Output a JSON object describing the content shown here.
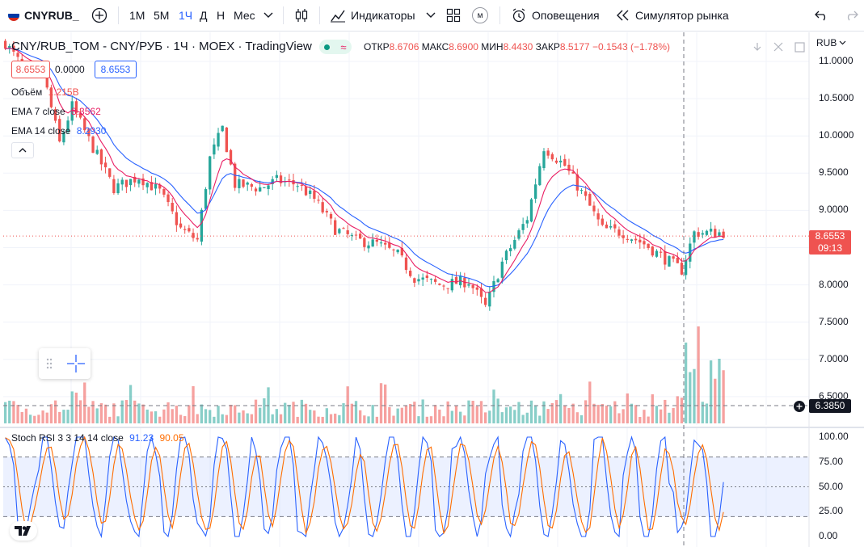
{
  "toolbar": {
    "symbol": "CNYRUB_",
    "intervals": [
      "1M",
      "5M",
      "1Ч",
      "Д",
      "Н",
      "Мес"
    ],
    "active_interval": "1Ч",
    "indicators_label": "Индикаторы",
    "alert_label": "Оповещения",
    "replay_label": "Симулятор рынка",
    "layout_letter": "м"
  },
  "header": {
    "title": "CNY/RUB_TOM - CNY/РУБ · 1Ч · MOEX · TradingView",
    "o_label": "ОТКР",
    "o_value": "8.6706",
    "h_label": "МАКС",
    "h_value": "8.6900",
    "l_label": "МИН",
    "l_value": "8.4430",
    "c_label": "ЗАКР",
    "c_value": "8.5177",
    "change": "−0.1543 (−1.78%)",
    "sell_price": "8.6553",
    "spread": "0.0000",
    "buy_price": "8.6553",
    "volume_label": "Объём",
    "volume_value": "1.215B",
    "ema7_label": "EMA 7 close",
    "ema7_value": "8.3562",
    "ema14_label": "EMA 14 close",
    "ema14_value": "8.2930",
    "currency": "RUB"
  },
  "colors": {
    "up": "#26a69a",
    "down": "#ef5350",
    "ema7": "#e91e63",
    "ema14": "#2962ff",
    "k": "#2962ff",
    "d": "#ff6d00",
    "accent": "#2962ff"
  },
  "chart_data": [
    {
      "type": "candlestick",
      "name": "CNY/RUB_TOM",
      "y_ticks": [
        "11.0000",
        "10.5000",
        "10.0000",
        "9.5000",
        "9.0000",
        "8.5000",
        "8.0000",
        "7.5000",
        "7.0000",
        "6.5000"
      ],
      "ylim": [
        6.25,
        11.25
      ],
      "last_price": "8.6553",
      "last_time": "09:13",
      "key_points": [
        [
          0,
          11.25
        ],
        [
          5,
          10.85
        ],
        [
          9,
          10.85
        ],
        [
          13,
          9.9
        ],
        [
          16,
          10.4
        ],
        [
          20,
          9.95
        ],
        [
          26,
          9.3
        ],
        [
          32,
          9.45
        ],
        [
          37,
          9.25
        ],
        [
          42,
          8.75
        ],
        [
          46,
          8.6
        ],
        [
          49,
          9.7
        ],
        [
          52,
          10.1
        ],
        [
          55,
          9.35
        ],
        [
          61,
          9.3
        ],
        [
          65,
          9.4
        ],
        [
          70,
          9.35
        ],
        [
          74,
          9.15
        ],
        [
          79,
          8.75
        ],
        [
          84,
          8.6
        ],
        [
          89,
          8.55
        ],
        [
          94,
          8.4
        ],
        [
          98,
          8.1
        ],
        [
          104,
          8.0
        ],
        [
          111,
          8.05
        ],
        [
          115,
          7.7
        ],
        [
          119,
          8.3
        ],
        [
          122,
          8.6
        ],
        [
          125,
          8.9
        ],
        [
          129,
          9.85
        ],
        [
          134,
          9.6
        ],
        [
          139,
          9.15
        ],
        [
          143,
          8.75
        ],
        [
          148,
          8.7
        ],
        [
          153,
          8.55
        ],
        [
          158,
          8.35
        ],
        [
          162,
          8.2
        ],
        [
          165,
          8.7
        ],
        [
          172,
          8.7
        ]
      ],
      "ema7_last": 8.3562,
      "ema14_last": 8.293
    },
    {
      "type": "bar",
      "name": "Объём",
      "last_value": "6.3850",
      "bar_count": 173
    },
    {
      "type": "line",
      "name": "Stoch RSI 3 3 14 14 close",
      "series": [
        {
          "name": "K",
          "last": "91.23"
        },
        {
          "name": "D",
          "last": "90.05"
        }
      ],
      "ylim": [
        0,
        100
      ],
      "bands": [
        20,
        80
      ],
      "y_ticks": [
        "100.00",
        "75.00",
        "50.00",
        "25.00",
        "0.00"
      ]
    }
  ],
  "stoch": {
    "label": "Stoch RSI 3 3 14 14 close",
    "k": "91.23",
    "d": "90.05"
  }
}
